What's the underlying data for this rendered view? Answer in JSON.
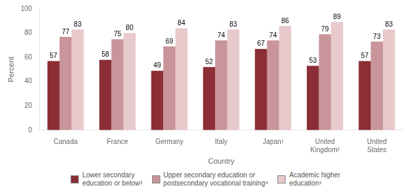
{
  "chart_data": {
    "type": "bar",
    "xlabel": "Country",
    "ylabel": "Percent",
    "categories": [
      "Canada",
      "France",
      "Germany",
      "Italy",
      "Japan¹",
      "United\nKingdom²",
      "United\nStates"
    ],
    "series": [
      {
        "name": "Lower secondary\neducation or below³",
        "color": "#8B2E35",
        "values": [
          57,
          58,
          49,
          52,
          67,
          53,
          57
        ]
      },
      {
        "name": "Upper secondary education or\npostsecondary vocational training⁴",
        "color": "#C9959A",
        "values": [
          77,
          75,
          69,
          74,
          74,
          79,
          73
        ]
      },
      {
        "name": "Academic higher\neducation⁵",
        "color": "#E8C9CC",
        "values": [
          83,
          80,
          84,
          83,
          86,
          89,
          83
        ]
      }
    ],
    "ylim": [
      0,
      100
    ],
    "yticks": [
      0,
      20,
      40,
      60,
      80,
      100
    ],
    "grid": false,
    "legend": "bottom",
    "data_labels": true
  }
}
